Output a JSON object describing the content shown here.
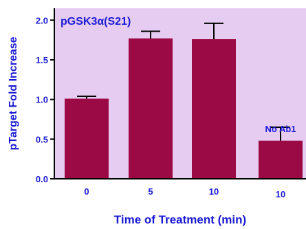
{
  "chart_data": {
    "type": "bar",
    "title": "pGSK3α(S21)",
    "xlabel": "Time of Treatment (min)",
    "ylabel": "pTarget Fold Increase",
    "categories": [
      "0",
      "5",
      "10",
      "10"
    ],
    "values": [
      1.01,
      1.77,
      1.76,
      0.48
    ],
    "errors": [
      0.03,
      0.09,
      0.2,
      0.17
    ],
    "ylim": [
      0,
      2.15
    ],
    "yticks": [
      "0.0",
      "0.5",
      "1.0",
      "1.5",
      "2.0"
    ],
    "annotation": "No Ab1",
    "grid": false,
    "legend": "none",
    "colors": {
      "plot_bg": "#e7ccf2",
      "bar": "#9c0a45",
      "text": "#1a1ad6",
      "axis": "#000000"
    }
  }
}
